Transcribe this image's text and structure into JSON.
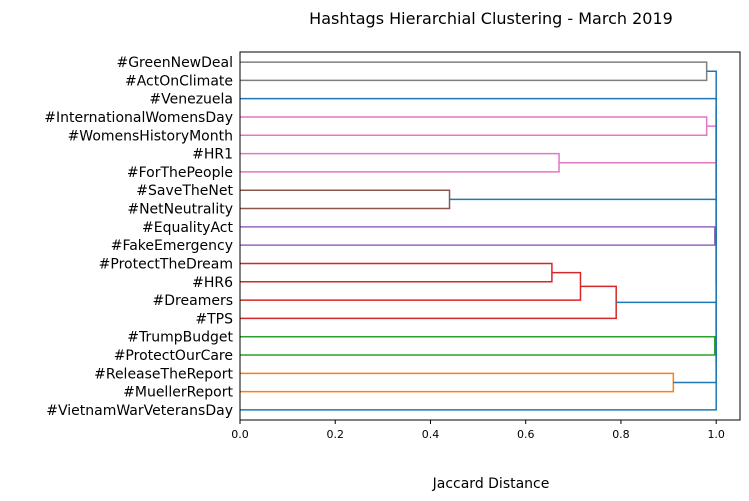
{
  "chart_data": {
    "type": "dendrogram",
    "title": "Hashtags Hierarchial Clustering - March 2019",
    "xlabel": "Jaccard Distance",
    "xlim": [
      0.0,
      1.05
    ],
    "xticks": [
      "0.0",
      "0.2",
      "0.4",
      "0.6",
      "0.8",
      "1.0"
    ],
    "xtick_values": [
      0.0,
      0.2,
      0.4,
      0.6,
      0.8,
      1.0
    ],
    "orientation": "left",
    "leaves": [
      "#GreenNewDeal",
      "#ActOnClimate",
      "#Venezuela",
      "#InternationalWomensDay",
      "#WomensHistoryMonth",
      "#HR1",
      "#ForThePeople",
      "#SaveTheNet",
      "#NetNeutrality",
      "#EqualityAct",
      "#FakeEmergency",
      "#ProtectTheDream",
      "#HR6",
      "#Dreamers",
      "#TPS",
      "#TrumpBudget",
      "#ProtectOurCare",
      "#ReleaseTheReport",
      "#MuellerReport",
      "#VietnamWarVeteransDay"
    ],
    "merges": [
      {
        "id": "g1",
        "left": 0,
        "right": 1,
        "distance": 0.98,
        "color": "#7f7f7f"
      },
      {
        "id": "w1",
        "left": 3,
        "right": 4,
        "distance": 0.98,
        "color": "#e377c2"
      },
      {
        "id": "w2",
        "left": 5,
        "right": 6,
        "distance": 0.67,
        "color": "#e377c2"
      },
      {
        "id": "w3",
        "left": "w1",
        "right": "w2",
        "distance": 1.0,
        "color": "#e377c2"
      },
      {
        "id": "n1",
        "left": 7,
        "right": 8,
        "distance": 0.44,
        "color": "#8c564b"
      },
      {
        "id": "e1",
        "left": 9,
        "right": 10,
        "distance": 0.997,
        "color": "#9467bd"
      },
      {
        "id": "r1",
        "left": 11,
        "right": 12,
        "distance": 0.655,
        "color": "#d62728"
      },
      {
        "id": "r2",
        "left": "r1",
        "right": 13,
        "distance": 0.715,
        "color": "#d62728"
      },
      {
        "id": "r3",
        "left": "r2",
        "right": 14,
        "distance": 0.79,
        "color": "#d62728"
      },
      {
        "id": "c1",
        "left": 15,
        "right": 16,
        "distance": 0.997,
        "color": "#2ca02c"
      },
      {
        "id": "o1",
        "left": 17,
        "right": 18,
        "distance": 0.91,
        "color": "#ff7f0e"
      },
      {
        "id": "b1",
        "left": "c1",
        "right": "o1",
        "distance": 1.0,
        "color": "#1f77b4"
      },
      {
        "id": "b2",
        "left": "r3",
        "right": "b1",
        "distance": 1.0,
        "color": "#1f77b4"
      },
      {
        "id": "b3",
        "left": "e1",
        "right": "b2",
        "distance": 1.0,
        "color": "#1f77b4"
      },
      {
        "id": "b4",
        "left": "n1",
        "right": "b3",
        "distance": 1.0,
        "color": "#1f77b4"
      },
      {
        "id": "b5",
        "left": "w3",
        "right": "b4",
        "distance": 1.0,
        "color": "#1f77b4"
      },
      {
        "id": "b6",
        "left": 2,
        "right": "b5",
        "distance": 1.0,
        "color": "#1f77b4"
      },
      {
        "id": "b7",
        "left": "g1",
        "right": "b6",
        "distance": 1.0,
        "color": "#1f77b4"
      },
      {
        "id": "b8",
        "left": "b7",
        "right": 19,
        "distance": 1.0,
        "color": "#1f77b4"
      }
    ],
    "grid": false,
    "legend": "none"
  }
}
